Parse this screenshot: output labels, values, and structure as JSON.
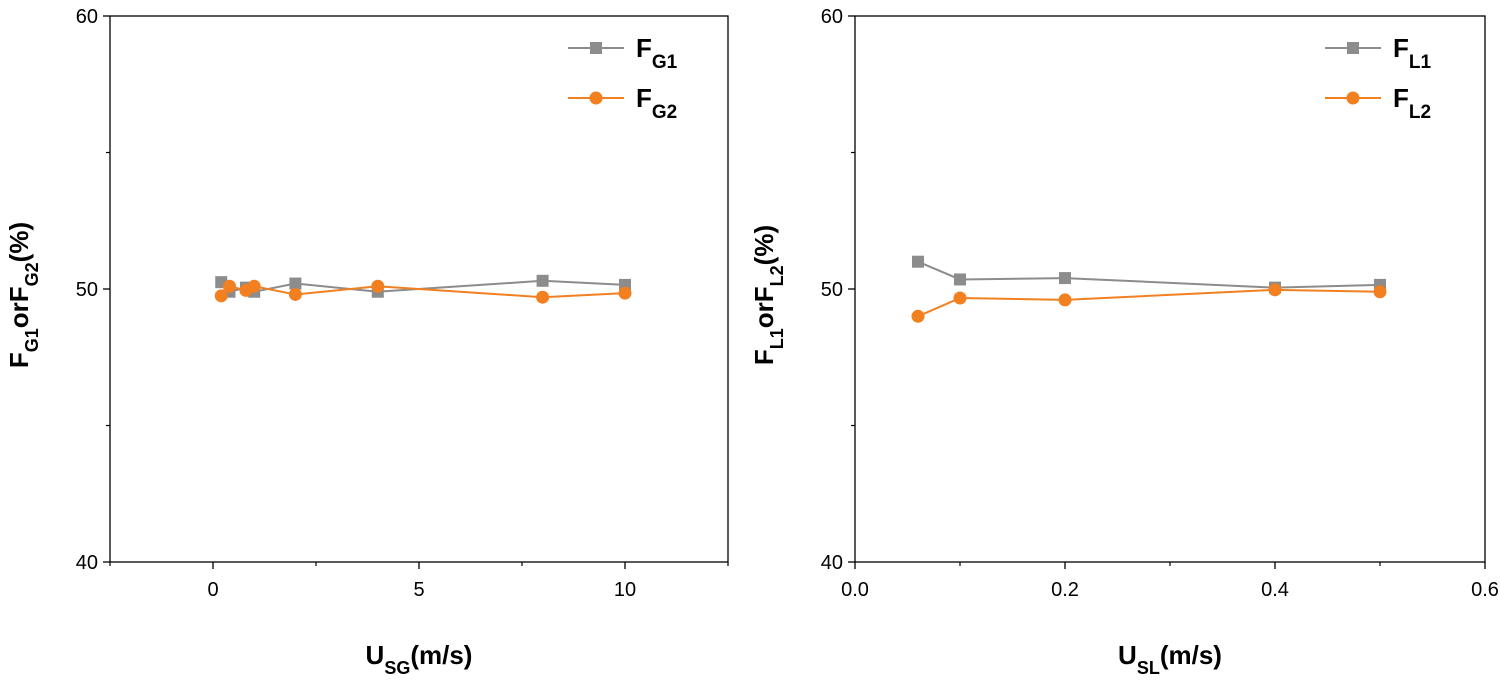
{
  "chart_data": [
    {
      "type": "line",
      "xlim": [
        -2.5,
        12.5
      ],
      "ylim": [
        40,
        60
      ],
      "xticks": [
        0,
        5,
        10
      ],
      "xminor": [
        -2.5,
        2.5,
        7.5,
        12.5
      ],
      "yticks": [
        40,
        50,
        60
      ],
      "yminor": [
        45,
        55
      ],
      "xlabel": [
        {
          "t": "U"
        },
        {
          "t": "SG",
          "sub": true
        },
        {
          "t": "(m/s)"
        }
      ],
      "ylabel": [
        {
          "t": "F"
        },
        {
          "t": "G1",
          "sub": true
        },
        {
          "t": "orF"
        },
        {
          "t": "G2",
          "sub": true
        },
        {
          "t": "(%)"
        }
      ],
      "legend_position": "top-right",
      "grid": false,
      "series": [
        {
          "name": [
            {
              "t": "F"
            },
            {
              "t": "G1",
              "sub": true
            }
          ],
          "marker": "square",
          "color": "#8c8c8c",
          "x": [
            0.2,
            0.4,
            0.8,
            1,
            2,
            4,
            8,
            10
          ],
          "y": [
            50.25,
            49.9,
            50.05,
            49.9,
            50.2,
            49.9,
            50.3,
            50.15
          ]
        },
        {
          "name": [
            {
              "t": "F"
            },
            {
              "t": "G2",
              "sub": true
            }
          ],
          "marker": "circle",
          "color": "#f28021",
          "x": [
            0.2,
            0.4,
            0.8,
            1,
            2,
            4,
            8,
            10
          ],
          "y": [
            49.75,
            50.1,
            49.95,
            50.1,
            49.8,
            50.1,
            49.7,
            49.85
          ]
        }
      ]
    },
    {
      "type": "line",
      "xlim": [
        0,
        0.6
      ],
      "ylim": [
        40,
        60
      ],
      "xticks": [
        0.0,
        0.2,
        0.4,
        0.6
      ],
      "xtick_labels": [
        "0.0",
        "0.2",
        "0.4",
        "0.6"
      ],
      "xminor": [
        0.1,
        0.3,
        0.5
      ],
      "yticks": [
        40,
        50,
        60
      ],
      "yminor": [
        45,
        55
      ],
      "xlabel": [
        {
          "t": "U"
        },
        {
          "t": "SL",
          "sub": true
        },
        {
          "t": "(m/s)"
        }
      ],
      "ylabel": [
        {
          "t": "F"
        },
        {
          "t": "L1",
          "sub": true
        },
        {
          "t": "orF"
        },
        {
          "t": "L2",
          "sub": true
        },
        {
          "t": "(%)"
        }
      ],
      "legend_position": "top-right",
      "grid": false,
      "series": [
        {
          "name": [
            {
              "t": "F"
            },
            {
              "t": "L1",
              "sub": true
            }
          ],
          "marker": "square",
          "color": "#8c8c8c",
          "x": [
            0.06,
            0.1,
            0.2,
            0.4,
            0.5
          ],
          "y": [
            51.0,
            50.35,
            50.4,
            50.05,
            50.15
          ]
        },
        {
          "name": [
            {
              "t": "F"
            },
            {
              "t": "L2",
              "sub": true
            }
          ],
          "marker": "circle",
          "color": "#f28021",
          "x": [
            0.06,
            0.1,
            0.2,
            0.4,
            0.5
          ],
          "y": [
            49.0,
            49.67,
            49.6,
            49.97,
            49.9
          ]
        }
      ]
    }
  ]
}
